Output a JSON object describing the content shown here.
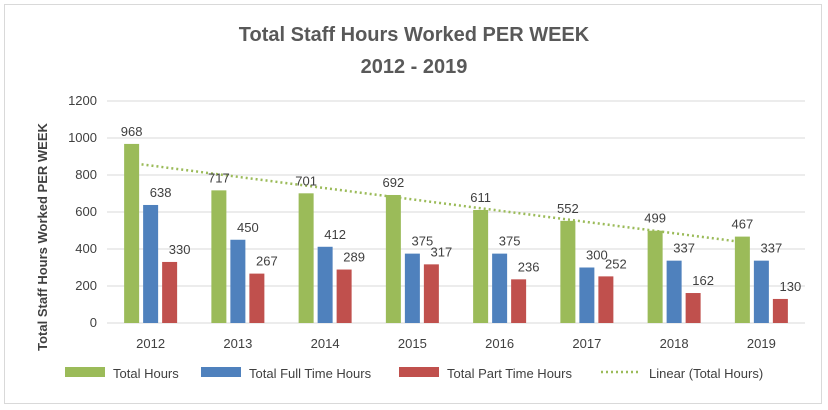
{
  "chart_data": {
    "type": "bar",
    "title": "Total Staff Hours Worked PER WEEK",
    "subtitle": "2012 - 2019",
    "ylabel": "Total Staff Hours Worked PER WEEK",
    "xlabel": "",
    "ylim": [
      0,
      1200
    ],
    "yticks": [
      0,
      200,
      400,
      600,
      800,
      1000,
      1200
    ],
    "grid": true,
    "legend_position": "bottom",
    "categories": [
      "2012",
      "2013",
      "2014",
      "2015",
      "2016",
      "2017",
      "2018",
      "2019"
    ],
    "series": [
      {
        "name": "Total Hours",
        "color": "#9bbb59",
        "values": [
          968,
          717,
          701,
          692,
          611,
          552,
          499,
          467
        ]
      },
      {
        "name": "Total Full Time Hours",
        "color": "#4f81bd",
        "values": [
          638,
          450,
          412,
          375,
          375,
          300,
          337,
          337
        ]
      },
      {
        "name": "Total Part Time Hours",
        "color": "#c0504d",
        "values": [
          330,
          267,
          289,
          317,
          236,
          252,
          162,
          130
        ]
      }
    ],
    "trendline": {
      "name": "Linear (Total Hours)",
      "color": "#9bbb59",
      "style": "dotted",
      "of_series": "Total Hours"
    }
  }
}
